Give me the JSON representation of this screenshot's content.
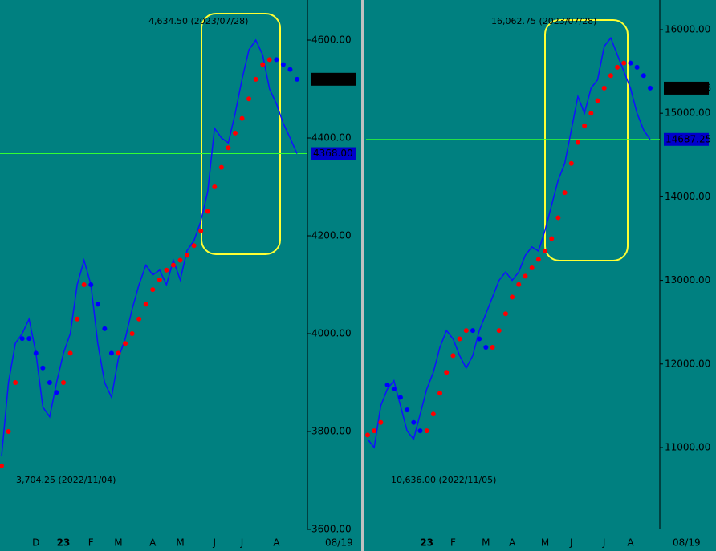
{
  "chart_data": [
    {
      "type": "line",
      "ylim": [
        3600,
        4682
      ],
      "yticks": [
        {
          "value": 3600,
          "label": "3600.00"
        },
        {
          "value": 3800,
          "label": "3800.00"
        },
        {
          "value": 4000,
          "label": "4000.00"
        },
        {
          "value": 4200,
          "label": "4200.00"
        },
        {
          "value": 4400,
          "label": "4400.00"
        },
        {
          "value": 4600,
          "label": "4600.00"
        }
      ],
      "categories": [
        null,
        null,
        null,
        null,
        null,
        "D",
        null,
        null,
        null,
        "23",
        null,
        null,
        null,
        "F",
        null,
        null,
        null,
        "M",
        null,
        null,
        null,
        null,
        "A",
        null,
        null,
        null,
        "M",
        null,
        null,
        null,
        null,
        "J",
        null,
        null,
        null,
        "J",
        null,
        null,
        null,
        null,
        "A",
        null,
        null,
        null
      ],
      "date_label": "08/19",
      "high_label": "4,634.50 (2023/07/28)",
      "low_label": "3,704.25 (2022/11/04)",
      "last_label": "4518.79",
      "cursor_label": "4368.00",
      "cursor_value": 4368,
      "price": {
        "color": "#1010ff",
        "values": [
          3750,
          3900,
          3980,
          4000,
          4030,
          3960,
          3850,
          3830,
          3900,
          3960,
          4000,
          4100,
          4150,
          4100,
          3980,
          3900,
          3870,
          3950,
          3990,
          4050,
          4100,
          4140,
          4120,
          4130,
          4100,
          4150,
          4110,
          4170,
          4190,
          4230,
          4290,
          4420,
          4400,
          4390,
          4450,
          4520,
          4580,
          4600,
          4570,
          4500,
          4470,
          4430,
          4400,
          4368
        ]
      },
      "series": [
        {
          "color": "#ff0000",
          "values": [
            3730,
            3800,
            3900,
            null,
            null,
            null,
            null,
            null,
            null,
            3900,
            3960,
            4030,
            4100,
            null,
            null,
            null,
            null,
            3960,
            3980,
            4000,
            4030,
            4060,
            4090,
            4110,
            4130,
            4140,
            4150,
            4160,
            4180,
            4210,
            4250,
            4300,
            4340,
            4380,
            4410,
            4440,
            4480,
            4520,
            4550,
            4560,
            null,
            null,
            null,
            null
          ]
        },
        {
          "color": "#0000ff",
          "values": [
            null,
            null,
            null,
            3990,
            3990,
            3960,
            3930,
            3900,
            3880,
            null,
            null,
            null,
            null,
            4100,
            4060,
            4010,
            3960,
            null,
            null,
            null,
            null,
            null,
            null,
            null,
            null,
            null,
            null,
            null,
            null,
            null,
            null,
            null,
            null,
            null,
            null,
            null,
            null,
            null,
            null,
            null,
            4560,
            4550,
            4540,
            4520
          ]
        }
      ]
    },
    {
      "type": "line",
      "ylim": [
        10021,
        16355
      ],
      "yticks": [
        {
          "value": 11000,
          "label": "11000.00"
        },
        {
          "value": 12000,
          "label": "12000.00"
        },
        {
          "value": 13000,
          "label": "13000.00"
        },
        {
          "value": 14000,
          "label": "14000.00"
        },
        {
          "value": 15000,
          "label": "15000.00"
        },
        {
          "value": 16000,
          "label": "16000.00"
        }
      ],
      "categories": [
        null,
        null,
        null,
        null,
        null,
        null,
        null,
        null,
        null,
        "23",
        null,
        null,
        null,
        "F",
        null,
        null,
        null,
        null,
        "M",
        null,
        null,
        null,
        "A",
        null,
        null,
        null,
        null,
        "M",
        null,
        null,
        null,
        "J",
        null,
        null,
        null,
        null,
        "J",
        null,
        null,
        null,
        "A",
        null,
        null,
        null
      ],
      "date_label": "08/19",
      "high_label": "16,062.75 (2023/07/28)",
      "low_label": "10,636.00 (2022/11/05)",
      "last_label": "15370.73",
      "cursor_label": "14687.25",
      "cursor_value": 14687.25,
      "price": {
        "color": "#1010ff",
        "values": [
          11100,
          11000,
          11500,
          11700,
          11800,
          11500,
          11200,
          11100,
          11400,
          11700,
          11900,
          12200,
          12400,
          12300,
          12100,
          11950,
          12100,
          12400,
          12600,
          12800,
          13000,
          13100,
          13000,
          13100,
          13300,
          13400,
          13350,
          13600,
          13900,
          14200,
          14400,
          14800,
          15200,
          15000,
          15300,
          15400,
          15800,
          15900,
          15700,
          15500,
          15300,
          15000,
          14800,
          14687.25
        ]
      },
      "series": [
        {
          "color": "#ff0000",
          "values": [
            11150,
            11200,
            11300,
            null,
            null,
            null,
            null,
            null,
            null,
            11200,
            11400,
            11650,
            11900,
            12100,
            12300,
            12400,
            null,
            null,
            null,
            12200,
            12400,
            12600,
            12800,
            12950,
            13050,
            13150,
            13250,
            13350,
            13500,
            13750,
            14050,
            14400,
            14650,
            14850,
            15000,
            15150,
            15300,
            15450,
            15550,
            15600,
            null,
            null,
            null,
            null
          ]
        },
        {
          "color": "#0000ff",
          "values": [
            null,
            null,
            null,
            11750,
            11700,
            11600,
            11450,
            11300,
            11200,
            null,
            null,
            null,
            null,
            null,
            null,
            null,
            12400,
            12300,
            12200,
            null,
            null,
            null,
            null,
            null,
            null,
            null,
            null,
            null,
            null,
            null,
            null,
            null,
            null,
            null,
            null,
            null,
            null,
            null,
            null,
            null,
            15600,
            15550,
            15450,
            15300
          ]
        }
      ]
    }
  ]
}
